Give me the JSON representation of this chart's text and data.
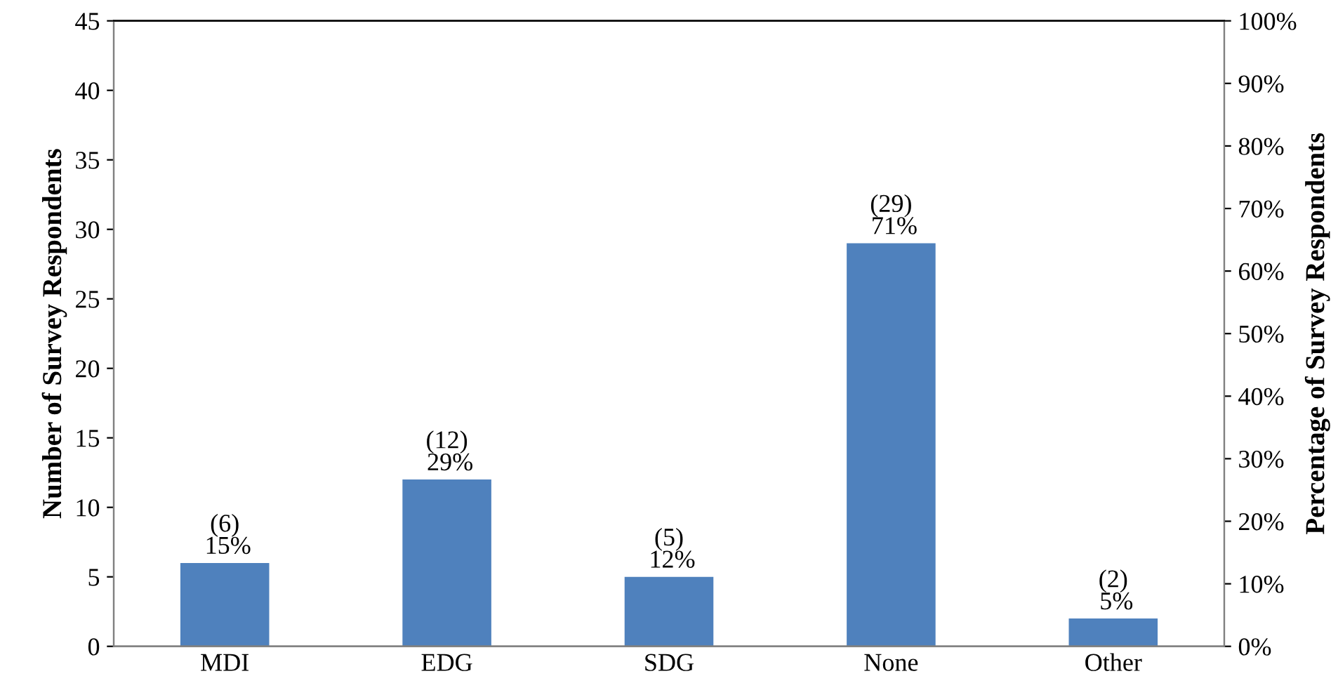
{
  "chart_data": {
    "type": "bar",
    "categories": [
      "MDI",
      "EDG",
      "SDG",
      "None",
      "Other"
    ],
    "values": [
      6,
      12,
      5,
      29,
      2
    ],
    "color": "#4f81bd",
    "value_labels": [
      "(6)\n 15%",
      "(12)\n 29%",
      "(5)\n 12%",
      "(29)\n 71%",
      "(2)\n 5%"
    ],
    "ylabel": "Number of Survey Respondents",
    "y2label": "Percentage of Survey Respondents",
    "ylim": [
      0,
      45
    ],
    "yticks": [
      0,
      5,
      10,
      15,
      20,
      25,
      30,
      35,
      40,
      45
    ],
    "y2lim": [
      0,
      100
    ],
    "y2ticks": [
      {
        "value": 0,
        "label": "0%"
      },
      {
        "value": 10,
        "label": "10%"
      },
      {
        "value": 20,
        "label": "20%"
      },
      {
        "value": 30,
        "label": "30%"
      },
      {
        "value": 40,
        "label": "40%"
      },
      {
        "value": 50,
        "label": "50%"
      },
      {
        "value": 60,
        "label": "60%"
      },
      {
        "value": 70,
        "label": "70%"
      },
      {
        "value": 80,
        "label": "80%"
      },
      {
        "value": 90,
        "label": "90%"
      },
      {
        "value": 100,
        "label": "100%"
      }
    ],
    "grid": false,
    "legend": false
  }
}
